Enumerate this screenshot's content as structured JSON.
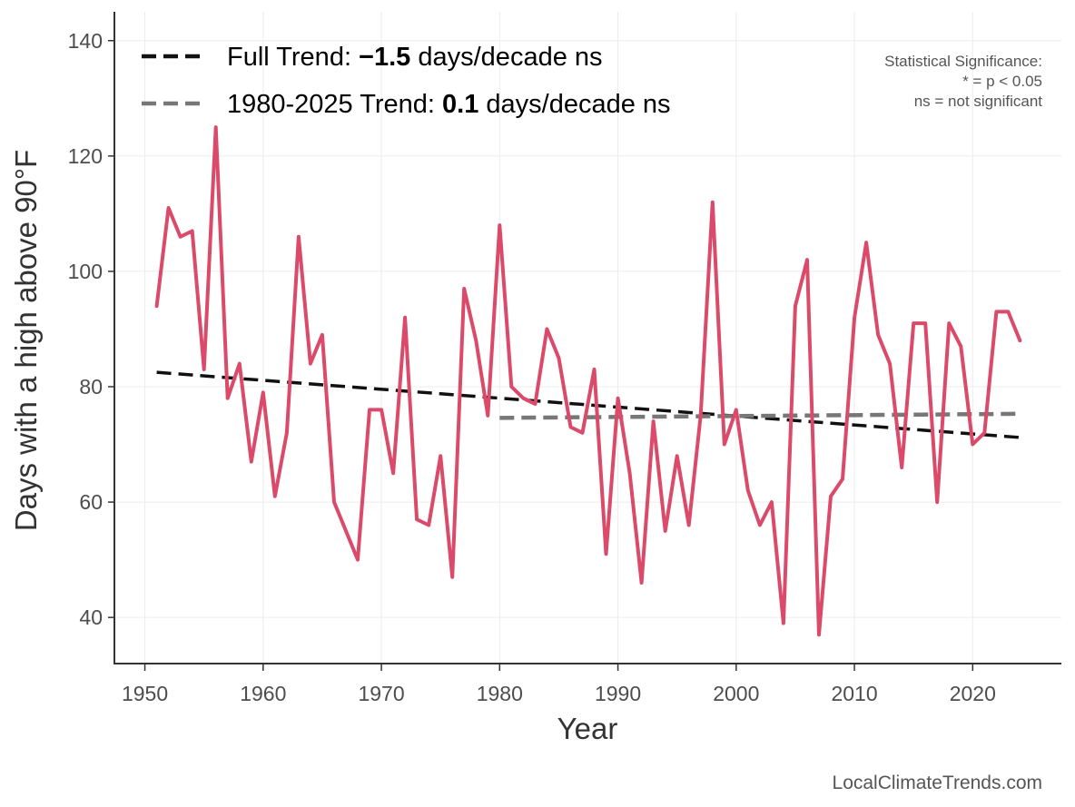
{
  "chart_data": {
    "type": "line",
    "title": "",
    "xlabel": "Year",
    "ylabel": "Days with a high above 90°F",
    "xlim": [
      1947.5,
      2027.5
    ],
    "ylim": [
      32,
      145
    ],
    "x_ticks": [
      "1950",
      "1960",
      "1970",
      "1980",
      "1990",
      "2000",
      "2010",
      "2020"
    ],
    "x_tick_values": [
      1950,
      1960,
      1970,
      1980,
      1990,
      2000,
      2010,
      2020
    ],
    "y_ticks": [
      "40",
      "60",
      "80",
      "100",
      "120",
      "140"
    ],
    "y_tick_values": [
      40,
      60,
      80,
      100,
      120,
      140
    ],
    "grid": true,
    "series": [
      {
        "name": "Days above 90°F",
        "color": "#dc4a6a",
        "x": [
          1951,
          1952,
          1953,
          1954,
          1955,
          1956,
          1957,
          1958,
          1959,
          1960,
          1961,
          1962,
          1963,
          1964,
          1965,
          1966,
          1967,
          1968,
          1969,
          1970,
          1971,
          1972,
          1973,
          1974,
          1975,
          1976,
          1977,
          1978,
          1979,
          1980,
          1981,
          1982,
          1983,
          1984,
          1985,
          1986,
          1987,
          1988,
          1989,
          1990,
          1991,
          1992,
          1993,
          1994,
          1995,
          1996,
          1997,
          1998,
          1999,
          2000,
          2001,
          2002,
          2003,
          2004,
          2005,
          2006,
          2007,
          2008,
          2009,
          2010,
          2011,
          2012,
          2013,
          2014,
          2015,
          2016,
          2017,
          2018,
          2019,
          2020,
          2021,
          2022,
          2023,
          2024
        ],
        "values": [
          94,
          111,
          106,
          107,
          83,
          125,
          78,
          84,
          67,
          79,
          61,
          72,
          106,
          84,
          89,
          60,
          55,
          50,
          76,
          76,
          65,
          92,
          57,
          56,
          68,
          47,
          97,
          88,
          75,
          108,
          80,
          78,
          77,
          90,
          85,
          73,
          72,
          83,
          51,
          78,
          65,
          46,
          74,
          55,
          68,
          56,
          75,
          112,
          70,
          76,
          62,
          56,
          60,
          39,
          94,
          102,
          37,
          61,
          64,
          92,
          105,
          89,
          84,
          66,
          91,
          91,
          60,
          91,
          87,
          70,
          72,
          93,
          93,
          88
        ]
      }
    ],
    "trends": [
      {
        "name": "Full Trend",
        "color": "#111111",
        "x": [
          1951,
          2024
        ],
        "values": [
          82.5,
          71.2
        ]
      },
      {
        "name": "1980-2025 Trend",
        "color": "#777777",
        "x": [
          1980,
          2024
        ],
        "values": [
          74.6,
          75.3
        ]
      }
    ],
    "legend": {
      "position": "top-left",
      "entries": [
        {
          "prefix": "Full Trend: ",
          "value": "−1.5",
          "suffix": " days/decade ns"
        },
        {
          "prefix": "1980-2025 Trend: ",
          "value": "0.1",
          "suffix": " days/decade ns"
        }
      ]
    },
    "annotation": {
      "position": "top-right",
      "lines": [
        "Statistical Significance:",
        "* = p < 0.05",
        "ns = not significant"
      ]
    },
    "credit": "LocalClimateTrends.com"
  }
}
